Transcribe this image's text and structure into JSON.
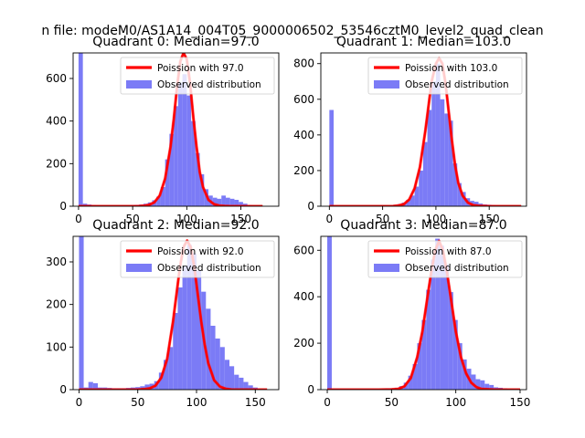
{
  "figure": {
    "suptitle": "n file: modeM0/AS1A14_004T05_9000006502_53546cztM0_level2_quad_clean"
  },
  "colors": {
    "hist": "#7b7bf6",
    "poisson": "#ff0000",
    "axes": "#000000"
  },
  "chart_data": [
    {
      "type": "bar",
      "title": "Quadrant 0: Median=97.0",
      "xlim": [
        -5,
        185
      ],
      "ylim": [
        0,
        720
      ],
      "xticks": [
        0,
        50,
        100,
        150
      ],
      "yticks": [
        0,
        200,
        400,
        600
      ],
      "bin_width": 4,
      "legend": [
        "Poission with 97.0",
        "Observed distribution"
      ],
      "observed": {
        "name": "Observed distribution",
        "x": [
          0,
          4,
          8,
          12,
          16,
          20,
          24,
          28,
          32,
          36,
          40,
          44,
          48,
          52,
          56,
          60,
          64,
          68,
          72,
          76,
          80,
          84,
          88,
          92,
          96,
          100,
          104,
          108,
          112,
          116,
          120,
          124,
          128,
          132,
          136,
          140,
          144,
          148,
          152,
          156,
          160
        ],
        "values": [
          720,
          12,
          8,
          5,
          4,
          4,
          3,
          3,
          3,
          4,
          3,
          4,
          5,
          6,
          8,
          12,
          18,
          28,
          45,
          90,
          220,
          340,
          470,
          580,
          620,
          520,
          400,
          250,
          150,
          80,
          50,
          40,
          35,
          50,
          40,
          35,
          30,
          20,
          12,
          5,
          3
        ]
      },
      "poisson": {
        "name": "Poission with 97.0",
        "mean": 97.0,
        "x": [
          0,
          10,
          20,
          30,
          40,
          50,
          55,
          60,
          65,
          70,
          75,
          80,
          85,
          88,
          91,
          94,
          97,
          100,
          103,
          106,
          109,
          112,
          115,
          120,
          125,
          130,
          135,
          140,
          150,
          160,
          170
        ],
        "values": [
          0,
          0,
          0,
          0,
          0,
          0,
          0,
          2,
          6,
          18,
          50,
          130,
          280,
          410,
          560,
          680,
          720,
          690,
          580,
          420,
          280,
          160,
          90,
          30,
          10,
          3,
          1,
          0,
          0,
          0,
          0
        ]
      }
    },
    {
      "type": "bar",
      "title": "Quadrant 1: Median=103.0",
      "xlim": [
        -8,
        185
      ],
      "ylim": [
        0,
        860
      ],
      "xticks": [
        0,
        50,
        100,
        150
      ],
      "yticks": [
        0,
        200,
        400,
        600,
        800
      ],
      "bin_width": 4,
      "legend": [
        "Poission with 103.0",
        "Observed distribution"
      ],
      "observed": {
        "name": "Observed distribution",
        "x": [
          0,
          4,
          8,
          12,
          16,
          20,
          24,
          28,
          32,
          36,
          40,
          44,
          48,
          52,
          56,
          60,
          64,
          68,
          72,
          76,
          80,
          84,
          88,
          92,
          96,
          100,
          104,
          108,
          112,
          116,
          120,
          124,
          128,
          132,
          136,
          140,
          144,
          148,
          152,
          156,
          160,
          164,
          168,
          172
        ],
        "values": [
          540,
          5,
          3,
          2,
          2,
          2,
          2,
          2,
          2,
          2,
          2,
          3,
          3,
          4,
          5,
          8,
          12,
          20,
          35,
          60,
          110,
          200,
          360,
          540,
          700,
          800,
          600,
          520,
          480,
          240,
          130,
          80,
          45,
          30,
          25,
          15,
          10,
          8,
          6,
          4,
          3,
          2,
          1,
          1
        ]
      },
      "poisson": {
        "name": "Poission with 103.0",
        "mean": 103.0,
        "x": [
          0,
          10,
          20,
          30,
          40,
          50,
          60,
          65,
          70,
          75,
          80,
          85,
          90,
          93,
          96,
          100,
          103,
          106,
          109,
          112,
          115,
          118,
          121,
          125,
          130,
          135,
          140,
          150,
          160,
          170,
          180
        ],
        "values": [
          0,
          0,
          0,
          0,
          0,
          0,
          1,
          4,
          12,
          38,
          100,
          220,
          420,
          560,
          700,
          800,
          830,
          800,
          690,
          530,
          370,
          230,
          130,
          60,
          20,
          6,
          2,
          0,
          0,
          0,
          0
        ]
      }
    },
    {
      "type": "bar",
      "title": "Quadrant 2: Median=92.0",
      "xlim": [
        -5,
        170
      ],
      "ylim": [
        0,
        360
      ],
      "xticks": [
        0,
        50,
        100,
        150
      ],
      "yticks": [
        0,
        100,
        200,
        300
      ],
      "bin_width": 4,
      "legend": [
        "Poission with 92.0",
        "Observed distribution"
      ],
      "observed": {
        "name": "Observed distribution",
        "x": [
          0,
          4,
          8,
          12,
          16,
          20,
          24,
          28,
          32,
          36,
          40,
          44,
          48,
          52,
          56,
          60,
          64,
          68,
          72,
          76,
          80,
          84,
          88,
          92,
          96,
          100,
          104,
          108,
          112,
          116,
          120,
          124,
          128,
          132,
          136,
          140,
          144,
          148
        ],
        "values": [
          360,
          5,
          18,
          15,
          5,
          5,
          4,
          3,
          3,
          3,
          4,
          5,
          6,
          8,
          12,
          14,
          20,
          40,
          70,
          100,
          180,
          240,
          290,
          340,
          320,
          280,
          230,
          190,
          150,
          120,
          100,
          70,
          55,
          35,
          28,
          18,
          10,
          5
        ]
      },
      "poisson": {
        "name": "Poission with 92.0",
        "mean": 92.0,
        "x": [
          0,
          10,
          20,
          30,
          40,
          50,
          55,
          60,
          65,
          70,
          75,
          80,
          83,
          86,
          89,
          92,
          95,
          98,
          101,
          104,
          107,
          110,
          115,
          120,
          125,
          130,
          140,
          150,
          160
        ],
        "values": [
          0,
          0,
          0,
          0,
          0,
          0,
          1,
          3,
          9,
          28,
          72,
          160,
          225,
          290,
          335,
          350,
          335,
          290,
          225,
          160,
          105,
          62,
          22,
          7,
          2,
          0,
          0,
          0,
          0
        ]
      }
    },
    {
      "type": "bar",
      "title": "Quadrant 3: Median=87.0",
      "xlim": [
        -5,
        155
      ],
      "ylim": [
        0,
        660
      ],
      "xticks": [
        0,
        50,
        100,
        150
      ],
      "yticks": [
        0,
        200,
        400,
        600
      ],
      "bin_width": 3.5,
      "legend": [
        "Poission with 87.0",
        "Observed distribution"
      ],
      "observed": {
        "name": "Observed distribution",
        "x": [
          0,
          3.5,
          7,
          10.5,
          14,
          17.5,
          21,
          24.5,
          28,
          31.5,
          35,
          38.5,
          42,
          45.5,
          49,
          52.5,
          56,
          59.5,
          63,
          66.5,
          70,
          73.5,
          77,
          80.5,
          84,
          87.5,
          91,
          94.5,
          98,
          101.5,
          105,
          108.5,
          112,
          115.5,
          119,
          122.5,
          126,
          129.5,
          133,
          136.5
        ],
        "values": [
          660,
          3,
          2,
          2,
          2,
          2,
          2,
          2,
          2,
          2,
          3,
          3,
          4,
          5,
          6,
          8,
          15,
          30,
          60,
          110,
          200,
          300,
          430,
          560,
          650,
          620,
          540,
          420,
          300,
          200,
          130,
          90,
          65,
          45,
          40,
          25,
          20,
          10,
          8,
          5
        ]
      },
      "poisson": {
        "name": "Poission with 87.0",
        "mean": 87.0,
        "x": [
          0,
          10,
          20,
          30,
          40,
          50,
          55,
          60,
          65,
          70,
          74,
          78,
          81,
          84,
          87,
          90,
          93,
          96,
          100,
          104,
          108,
          112,
          116,
          120,
          130,
          140,
          150
        ],
        "values": [
          0,
          0,
          0,
          0,
          0,
          1,
          3,
          14,
          50,
          140,
          250,
          400,
          510,
          600,
          640,
          600,
          510,
          400,
          250,
          140,
          70,
          30,
          11,
          3,
          0,
          0,
          0
        ]
      }
    }
  ]
}
